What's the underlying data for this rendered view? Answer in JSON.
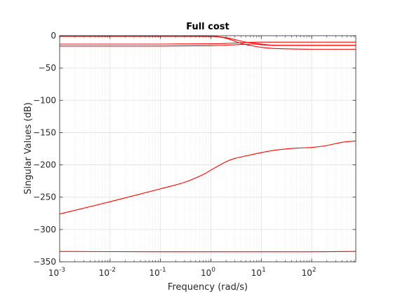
{
  "chart_data": {
    "type": "line",
    "title": "Full cost",
    "xlabel": "Frequency (rad/s)",
    "ylabel": "Singular Values (dB)",
    "xscale": "log",
    "xlim": [
      0.001,
      750
    ],
    "ylim": [
      -350,
      0
    ],
    "grid": true,
    "minor_grid": true,
    "line_color": "#ff0000",
    "x_ticks": [
      {
        "value": 0.001,
        "base": "10",
        "exp": "-3"
      },
      {
        "value": 0.01,
        "base": "10",
        "exp": "-2"
      },
      {
        "value": 0.1,
        "base": "10",
        "exp": "-1"
      },
      {
        "value": 1,
        "base": "10",
        "exp": "0"
      },
      {
        "value": 10,
        "base": "10",
        "exp": "1"
      },
      {
        "value": 100,
        "base": "10",
        "exp": "2"
      }
    ],
    "y_ticks": [
      {
        "value": 0,
        "label": "0"
      },
      {
        "value": -50,
        "label": "-50"
      },
      {
        "value": -100,
        "label": "-100"
      },
      {
        "value": -150,
        "label": "-150"
      },
      {
        "value": -200,
        "label": "-200"
      },
      {
        "value": -250,
        "label": "-250"
      },
      {
        "value": -300,
        "label": "-300"
      },
      {
        "value": -350,
        "label": "-350"
      }
    ],
    "series": [
      {
        "x": [
          0.001,
          0.01,
          0.1,
          0.5,
          1,
          2,
          3,
          5,
          10,
          20,
          100,
          750
        ],
        "y": [
          -0.3,
          -0.3,
          -0.3,
          -0.3,
          -0.6,
          -3,
          -6,
          -10,
          -13,
          -15,
          -15,
          -15
        ]
      },
      {
        "x": [
          0.001,
          0.01,
          0.1,
          1,
          2,
          4,
          7,
          10,
          20,
          100,
          750
        ],
        "y": [
          -1.0,
          -1.0,
          -1.0,
          -1.2,
          -4,
          -12,
          -16,
          -18,
          -20,
          -21,
          -21
        ]
      },
      {
        "x": [
          0.001,
          0.1,
          1,
          2,
          5,
          10,
          20,
          100,
          750
        ],
        "y": [
          -13,
          -13,
          -12.5,
          -12,
          -10.5,
          -10,
          -10,
          -10,
          -10
        ]
      },
      {
        "x": [
          0.001,
          0.1,
          1,
          3,
          7,
          10,
          20,
          100,
          750
        ],
        "y": [
          -16,
          -16,
          -15.5,
          -14,
          -13,
          -14,
          -15,
          -15,
          -15
        ]
      },
      {
        "x": [
          0.001,
          0.01,
          0.1,
          0.3,
          0.7,
          1,
          2,
          3,
          5,
          10,
          20,
          50,
          100,
          200,
          400,
          750
        ],
        "y": [
          -276,
          -257,
          -237,
          -227,
          -215,
          -208,
          -195,
          -190,
          -186,
          -181,
          -177,
          -174,
          -173,
          -170,
          -165,
          -163
        ]
      },
      {
        "x": [
          0.001,
          0.1,
          1,
          10,
          100,
          750
        ],
        "y": [
          -334,
          -334.5,
          -334.5,
          -334.5,
          -334.5,
          -334
        ]
      }
    ]
  }
}
